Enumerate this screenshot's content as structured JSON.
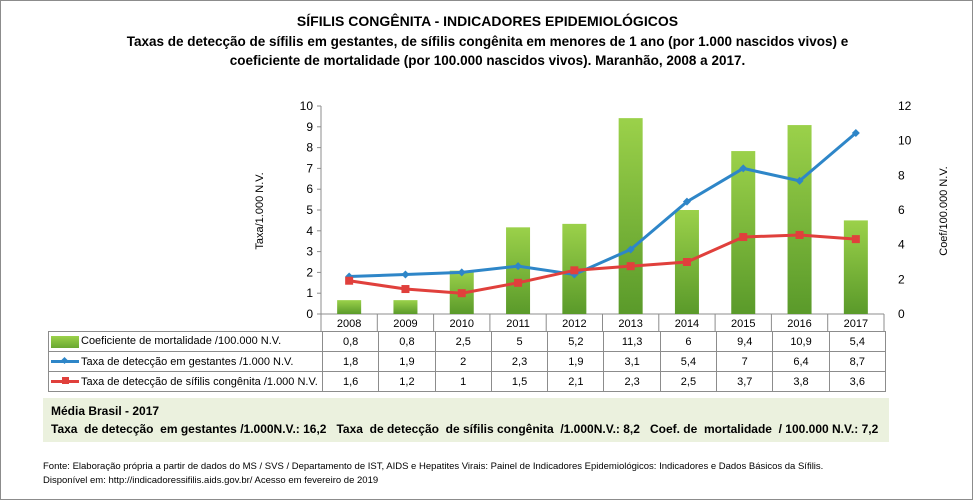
{
  "title": "SÍFILIS CONGÊNITA - INDICADORES EPIDEMIOLÓGICOS",
  "subtitle_line1": "Taxas de detecção de sífilis em gestantes, de sífilis congênita em menores de 1 ano (por 1.000 nascidos vivos) e",
  "subtitle_line2": "coeficiente de mortalidade (por 100.000 nascidos vivos). Maranhão, 2008 a 2017.",
  "chart_data": {
    "type": "bar+line",
    "categories": [
      "2008",
      "2009",
      "2010",
      "2011",
      "2012",
      "2013",
      "2014",
      "2015",
      "2016",
      "2017"
    ],
    "ylabel_left": "Taxa/1.000 N.V.",
    "ylabel_right": "Coef/100.000 N.V.",
    "ylim_left": [
      0,
      10
    ],
    "ylim_right": [
      0,
      12
    ],
    "yticks_left": [
      "0",
      "1",
      "2",
      "3",
      "4",
      "5",
      "6",
      "7",
      "8",
      "9",
      "10"
    ],
    "yticks_right": [
      "0",
      "2",
      "4",
      "6",
      "8",
      "10",
      "12"
    ],
    "series": [
      {
        "name": "Coeficiente de mortalidade /100.000 N.V.",
        "type": "bar",
        "axis": "right",
        "color": "#7fbf3f",
        "values": [
          0.8,
          0.8,
          2.5,
          5,
          5.2,
          11.3,
          6,
          9.4,
          10.9,
          5.4
        ],
        "labels": [
          "0,8",
          "0,8",
          "2,5",
          "5",
          "5,2",
          "11,3",
          "6",
          "9,4",
          "10,9",
          "5,4"
        ]
      },
      {
        "name": "Taxa de detecção em gestantes /1.000 N.V.",
        "type": "line",
        "axis": "left",
        "color": "#2e86c8",
        "values": [
          1.8,
          1.9,
          2,
          2.3,
          1.9,
          3.1,
          5.4,
          7,
          6.4,
          8.7
        ],
        "labels": [
          "1,8",
          "1,9",
          "2",
          "2,3",
          "1,9",
          "3,1",
          "5,4",
          "7",
          "6,4",
          "8,7"
        ]
      },
      {
        "name": "Taxa de detecção de sífilis congênita /1.000 N.V.",
        "type": "line",
        "axis": "left",
        "color": "#e0403c",
        "values": [
          1.6,
          1.2,
          1,
          1.5,
          2.1,
          2.3,
          2.5,
          3.7,
          3.8,
          3.6
        ],
        "labels": [
          "1,6",
          "1,2",
          "1",
          "1,5",
          "2,1",
          "2,3",
          "2,5",
          "3,7",
          "3,8",
          "3,6"
        ]
      }
    ]
  },
  "media": {
    "title": "Média Brasil - 2017",
    "line": "Taxa  de detecção  em gestantes /1.000N.V.: 16,2   Taxa  de detecção  de sífilis congênita  /1.000N.V.: 8,2   Coef. de  mortalidade  / 100.000 N.V.: 7,2"
  },
  "footnote1": "Fonte: Elaboração própria a partir de dados do MS / SVS / Departamento de IST, AIDS e Hepatites Virais: Painel de Indicadores Epidemiológicos: Indicadores e Dados Básicos da Sífilis.",
  "footnote2": "Disponível em: http://indicadoressifilis.aids.gov.br/    Acesso em fevereiro de 2019"
}
